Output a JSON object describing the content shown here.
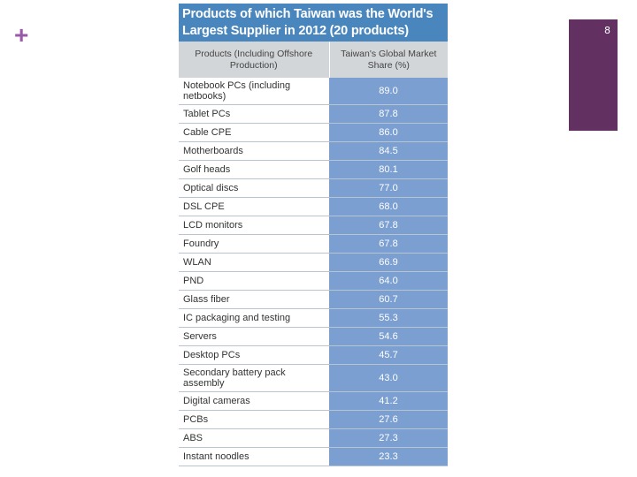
{
  "slide": {
    "plus": "+",
    "page_number": "8"
  },
  "table": {
    "title_line1": "Products of which Taiwan was the World's",
    "title_line2": "Largest Supplier in 2012 (20 products)",
    "headers": [
      "Products (Including Offshore Production)",
      "Taiwan's Global Market Share (%)"
    ],
    "rows": [
      {
        "product": "Notebook PCs (including netbooks)",
        "share": "89.0"
      },
      {
        "product": "Tablet PCs",
        "share": "87.8"
      },
      {
        "product": "Cable CPE",
        "share": "86.0"
      },
      {
        "product": "Motherboards",
        "share": "84.5"
      },
      {
        "product": "Golf heads",
        "share": "80.1"
      },
      {
        "product": "Optical discs",
        "share": "77.0"
      },
      {
        "product": "DSL CPE",
        "share": "68.0"
      },
      {
        "product": "LCD monitors",
        "share": "67.8"
      },
      {
        "product": "Foundry",
        "share": "67.8"
      },
      {
        "product": "WLAN",
        "share": "66.9"
      },
      {
        "product": "PND",
        "share": "64.0"
      },
      {
        "product": "Glass fiber",
        "share": "60.7"
      },
      {
        "product": "IC packaging and testing",
        "share": "55.3"
      },
      {
        "product": "Servers",
        "share": "54.6"
      },
      {
        "product": "Desktop PCs",
        "share": "45.7"
      },
      {
        "product": "Secondary battery pack assembly",
        "share": "43.0"
      },
      {
        "product": "Digital cameras",
        "share": "41.2"
      },
      {
        "product": "PCBs",
        "share": "27.6"
      },
      {
        "product": "ABS",
        "share": "27.3"
      },
      {
        "product": "Instant noodles",
        "share": "23.3"
      }
    ]
  },
  "colors": {
    "title_bg": "#4a86be",
    "value_bg": "#7b9fd1",
    "header_bg": "#d3d6d8",
    "page_box": "#633161",
    "plus": "#9a5aa8"
  }
}
